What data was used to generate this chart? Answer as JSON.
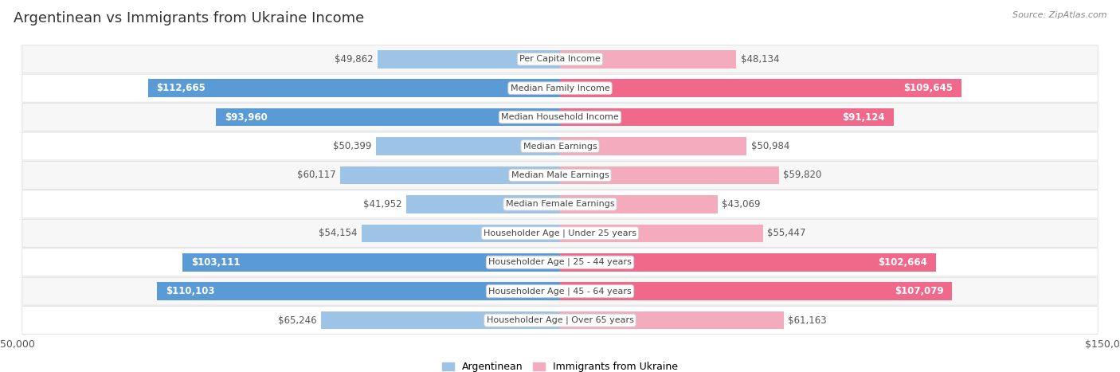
{
  "title": "Argentinean vs Immigrants from Ukraine Income",
  "source": "Source: ZipAtlas.com",
  "categories": [
    "Per Capita Income",
    "Median Family Income",
    "Median Household Income",
    "Median Earnings",
    "Median Male Earnings",
    "Median Female Earnings",
    "Householder Age | Under 25 years",
    "Householder Age | 25 - 44 years",
    "Householder Age | 45 - 64 years",
    "Householder Age | Over 65 years"
  ],
  "argentinean": [
    49862,
    112665,
    93960,
    50399,
    60117,
    41952,
    54154,
    103111,
    110103,
    65246
  ],
  "ukraine": [
    48134,
    109645,
    91124,
    50984,
    59820,
    43069,
    55447,
    102664,
    107079,
    61163
  ],
  "max_val": 150000,
  "color_arg_dark": "#5B9BD5",
  "color_arg_light": "#9DC3E6",
  "color_ukr_dark": "#F0688A",
  "color_ukr_light": "#F4ABBE",
  "bg_row_light": "#F7F7F7",
  "bg_row_white": "#FFFFFF",
  "title_fontsize": 13,
  "source_fontsize": 8,
  "tick_fontsize": 9,
  "bar_label_fontsize": 8.5,
  "category_fontsize": 8,
  "inside_threshold": 75000,
  "legend_label_arg": "Argentinean",
  "legend_label_ukr": "Immigrants from Ukraine"
}
